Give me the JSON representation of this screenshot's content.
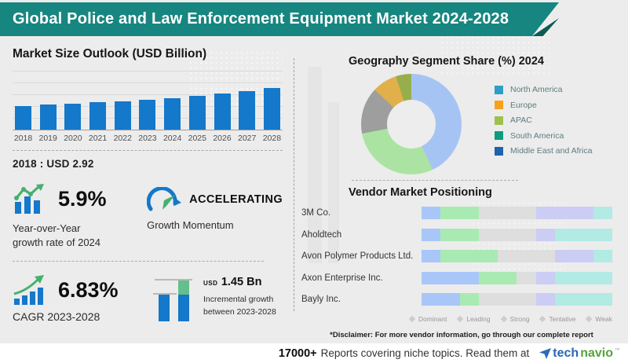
{
  "header": {
    "title": "Global Police and Law Enforcement Equipment Market 2024-2028"
  },
  "market": {
    "title": "Market Size Outlook (USD Billion)",
    "base_note": "2018 : USD 2.92"
  },
  "stats": {
    "yoy": {
      "value": "5.9%",
      "label_line1": "Year-over-Year",
      "label_line2": "growth rate of 2024"
    },
    "momentum": {
      "value": "ACCELERATING",
      "label": "Growth Momentum"
    },
    "cagr": {
      "value": "6.83%",
      "label": "CAGR 2023-2028"
    },
    "incremental": {
      "currency": "USD",
      "amount": "1.45 Bn",
      "label_line1": "Incremental growth",
      "label_line2": "between 2023-2028"
    }
  },
  "geography": {
    "title": "Geography Segment Share (%) 2024",
    "legend": [
      {
        "label": "North America",
        "color": "#2D9FC4"
      },
      {
        "label": "Europe",
        "color": "#F5A11C"
      },
      {
        "label": "APAC",
        "color": "#9CC14E"
      },
      {
        "label": "South America",
        "color": "#0F9B7E"
      },
      {
        "label": "Middle East and Africa",
        "color": "#1E63AD"
      }
    ]
  },
  "vendors": {
    "title": "Vendor Market Positioning",
    "disclaimer": "*Disclaimer: For more vendor information, go through our complete report"
  },
  "footer": {
    "count": "17000+",
    "text": "Reports covering niche topics. Read them at",
    "brand_tech": "tech",
    "brand_navio": "navio",
    "trademark": "™"
  },
  "colors": {
    "header_teal": "#178680",
    "bar_blue": "#1478CB",
    "accent_green": "#46B06E"
  },
  "chart_data": [
    {
      "type": "bar",
      "title": "Market Size Outlook (USD Billion)",
      "ylabel": "USD Billion",
      "categories": [
        "2018",
        "2019",
        "2020",
        "2021",
        "2022",
        "2023",
        "2024",
        "2025",
        "2026",
        "2027",
        "2028"
      ],
      "values": [
        2.92,
        3.06,
        3.2,
        3.35,
        3.52,
        3.7,
        3.92,
        4.18,
        4.47,
        4.79,
        5.15
      ],
      "ylim": [
        0,
        5.5
      ],
      "grid": true,
      "bar_color": "#1478CB",
      "annotation": "2018 : USD 2.92"
    },
    {
      "type": "pie",
      "donut": true,
      "title": "Geography Segment Share (%) 2024",
      "legend_position": "right",
      "slices": [
        {
          "label": "North America",
          "value": 43,
          "color": "#A6C4F3"
        },
        {
          "label": "Europe",
          "value": 29,
          "color": "#ABE3A3"
        },
        {
          "label": "APAC",
          "value": 15,
          "color": "#9E9E9E"
        },
        {
          "label": "South America",
          "value": 8,
          "color": "#E2B04A"
        },
        {
          "label": "Middle East and Africa",
          "value": 5,
          "color": "#97AE4D"
        }
      ]
    },
    {
      "type": "bar",
      "subtype": "stacked-horizontal",
      "title": "Vendor Market Positioning",
      "categories": [
        "3M Co.",
        "Aholdtech",
        "Avon Polymer Products Ltd.",
        "Axon Enterprise Inc.",
        "Bayly Inc."
      ],
      "series_labels": [
        "Dominant",
        "Leading",
        "Strong",
        "Tentative",
        "Weak"
      ],
      "series_colors": [
        "#A9C6F8",
        "#A9EAB2",
        "#DEDEDE",
        "#CCCDF4",
        "#B2EAE4"
      ],
      "values": [
        [
          10,
          20,
          30,
          30,
          10
        ],
        [
          10,
          20,
          30,
          10,
          30
        ],
        [
          10,
          30,
          30,
          20,
          10
        ],
        [
          30,
          20,
          10,
          10,
          30
        ],
        [
          20,
          10,
          30,
          10,
          30
        ]
      ]
    }
  ]
}
